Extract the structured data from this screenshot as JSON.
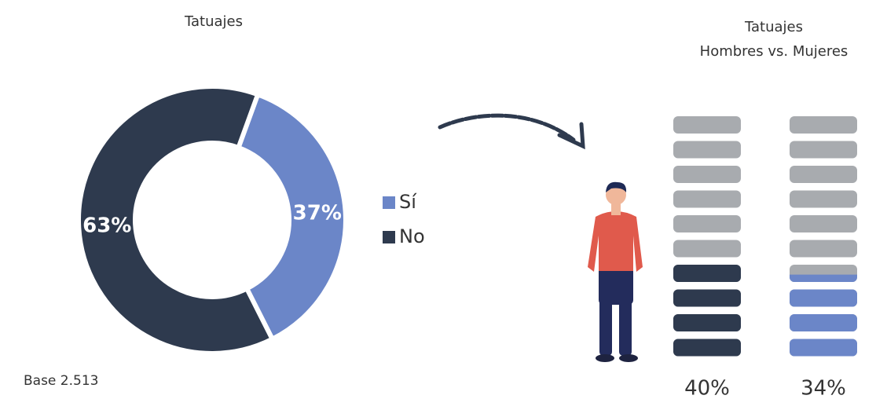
{
  "chart_data": [
    {
      "type": "donut",
      "title": "Tatuajes",
      "categories": [
        "Sí",
        "No"
      ],
      "values": [
        37,
        63
      ],
      "value_labels": [
        "37%",
        "63%"
      ],
      "colors": [
        "#6b86c8",
        "#2e3a4e"
      ],
      "annotation": "Base 2.513"
    },
    {
      "type": "pictogram",
      "title": "Tatuajes",
      "subtitle": "Hombres vs. Mujeres",
      "categories": [
        null,
        null
      ],
      "values": [
        40,
        34
      ],
      "value_labels": [
        "40%",
        "34%"
      ],
      "colors": [
        "#2e3a4e",
        "#6b86c8"
      ],
      "empty_color": "#a8abaf",
      "ylim": [
        0,
        100
      ]
    }
  ]
}
